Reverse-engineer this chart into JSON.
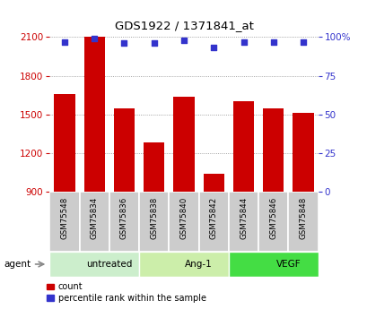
{
  "title": "GDS1922 / 1371841_at",
  "categories": [
    "GSM75548",
    "GSM75834",
    "GSM75836",
    "GSM75838",
    "GSM75840",
    "GSM75842",
    "GSM75844",
    "GSM75846",
    "GSM75848"
  ],
  "bar_values": [
    1660,
    2100,
    1545,
    1280,
    1640,
    1040,
    1600,
    1545,
    1510
  ],
  "percentile_values": [
    97,
    99,
    96,
    96,
    98,
    93,
    97,
    97,
    97
  ],
  "ylim_left": [
    900,
    2100
  ],
  "ylim_right": [
    0,
    100
  ],
  "yticks_left": [
    900,
    1200,
    1500,
    1800,
    2100
  ],
  "yticks_right": [
    0,
    25,
    50,
    75,
    100
  ],
  "bar_color": "#cc0000",
  "dot_color": "#3333cc",
  "groups": [
    {
      "label": "untreated",
      "start": 0,
      "end": 3,
      "color": "#cceecc"
    },
    {
      "label": "Ang-1",
      "start": 3,
      "end": 6,
      "color": "#cceeaa"
    },
    {
      "label": "VEGF",
      "start": 6,
      "end": 9,
      "color": "#44dd44"
    }
  ],
  "agent_label": "agent",
  "legend_count_label": "count",
  "legend_percentile_label": "percentile rank within the sample",
  "grid_color": "#888888",
  "bar_width": 0.7,
  "sample_box_color": "#cccccc",
  "fig_bg_color": "#ffffff"
}
